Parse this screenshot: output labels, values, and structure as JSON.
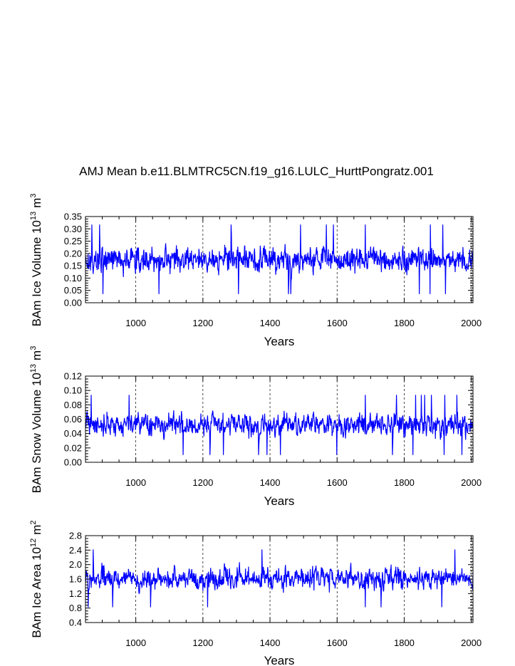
{
  "figure_title": "AMJ Mean b.e11.BLMTRC5CN.f19_g16.LULC_HurttPongratz.001",
  "colors": {
    "series": "#0000ff",
    "axis": "#000000",
    "grid": "#000000"
  },
  "chart_data": [
    {
      "type": "line",
      "title": "AMJ Mean b.e11.BLMTRC5CN.f19_g16.LULC_HurttPongratz.001",
      "xlabel": "Years",
      "ylabel": "BAm Ice Volume 10",
      "ylabel_exp": "13",
      "ylabel_unit": "m",
      "ylabel_unit_exp": "3",
      "xlim": [
        850,
        2005
      ],
      "ylim": [
        0.0,
        0.35
      ],
      "xticks": [
        1000,
        1200,
        1400,
        1600,
        1800,
        2000
      ],
      "xtick_labels": [
        "1000",
        "1200",
        "1400",
        "1600",
        "1800",
        "2000"
      ],
      "yticks": [
        0.0,
        0.05,
        0.1,
        0.15,
        0.2,
        0.25,
        0.3,
        0.35
      ],
      "ytick_labels": [
        "0.00",
        "0.05",
        "0.10",
        "0.15",
        "0.20",
        "0.25",
        "0.30",
        "0.35"
      ],
      "grid": "vertical dashed at major x ticks",
      "series": [
        {
          "name": "Ice Volume",
          "x_start": 850,
          "x_end": 2005,
          "mean": 0.175,
          "amplitude": 0.075,
          "min": 0.035,
          "max": 0.33,
          "seed": 17
        }
      ]
    },
    {
      "type": "line",
      "xlabel": "Years",
      "ylabel": "BAm Snow Volume 10",
      "ylabel_exp": "13",
      "ylabel_unit": "m",
      "ylabel_unit_exp": "3",
      "xlim": [
        850,
        2005
      ],
      "ylim": [
        0.0,
        0.12
      ],
      "xticks": [
        1000,
        1200,
        1400,
        1600,
        1800,
        2000
      ],
      "xtick_labels": [
        "1000",
        "1200",
        "1400",
        "1600",
        "1800",
        "2000"
      ],
      "yticks": [
        0.0,
        0.02,
        0.04,
        0.06,
        0.08,
        0.1,
        0.12
      ],
      "ytick_labels": [
        "0.00",
        "0.02",
        "0.04",
        "0.06",
        "0.08",
        "0.10",
        "0.12"
      ],
      "grid": "vertical dashed at major x ticks",
      "series": [
        {
          "name": "Snow Volume",
          "x_start": 850,
          "x_end": 2005,
          "mean": 0.052,
          "amplitude": 0.022,
          "min": 0.008,
          "max": 0.1,
          "seed": 41
        }
      ]
    },
    {
      "type": "line",
      "xlabel": "Years",
      "ylabel": "BAm Ice Area 10",
      "ylabel_exp": "12",
      "ylabel_unit": "m",
      "ylabel_unit_exp": "2",
      "xlim": [
        850,
        2005
      ],
      "ylim": [
        0.4,
        2.8
      ],
      "xticks": [
        1000,
        1200,
        1400,
        1600,
        1800,
        2000
      ],
      "xtick_labels": [
        "1000",
        "1200",
        "1400",
        "1600",
        "1800",
        "2000"
      ],
      "yticks": [
        0.4,
        0.8,
        1.2,
        1.6,
        2.0,
        2.4,
        2.8
      ],
      "ytick_labels": [
        "0.4",
        "0.8",
        "1.2",
        "1.6",
        "2.0",
        "2.4",
        "2.8"
      ],
      "grid": "vertical dashed at major x ticks",
      "series": [
        {
          "name": "Ice Area",
          "x_start": 850,
          "x_end": 2005,
          "mean": 1.62,
          "amplitude": 0.42,
          "min": 0.58,
          "max": 2.5,
          "seed": 73
        }
      ]
    }
  ]
}
